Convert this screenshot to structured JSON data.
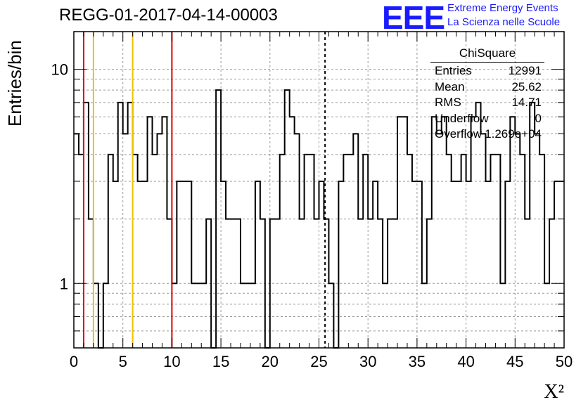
{
  "title": "REGG-01-2017-04-14-00003",
  "logo": {
    "mark": "EEE",
    "line1": "Extreme Energy Events",
    "line2": "La Scienza nelle Scuole",
    "color": "#1a1aff"
  },
  "stats": {
    "name": "ChiSquare",
    "rows": [
      {
        "label": "Entries",
        "value": "12991"
      },
      {
        "label": "Mean",
        "value": "25.62"
      },
      {
        "label": "RMS",
        "value": "14.71"
      },
      {
        "label": "Underflow",
        "value": "0"
      },
      {
        "label": "Overflow",
        "value": "1.269e+04"
      }
    ]
  },
  "chart_data": {
    "type": "histogram",
    "title": "REGG-01-2017-04-14-00003",
    "xlabel": "X²",
    "ylabel": "Entries/bin",
    "xlim": [
      0,
      50
    ],
    "ylim": [
      0.5,
      15
    ],
    "yscale": "log",
    "grid": true,
    "bin_width": 0.5,
    "xticks": [
      0,
      5,
      10,
      15,
      20,
      25,
      30,
      35,
      40,
      45,
      50
    ],
    "yticks": [
      1,
      10
    ],
    "bin_values": [
      5,
      4,
      7,
      2,
      1,
      0,
      1,
      4,
      3,
      7,
      5,
      7,
      4,
      3,
      3,
      6,
      4,
      5,
      6,
      2,
      1,
      3,
      3,
      3,
      1,
      1,
      1,
      2,
      0,
      8,
      3,
      2,
      2,
      2,
      1,
      1,
      1,
      3,
      2,
      0,
      2,
      2,
      4,
      8,
      6,
      5,
      2,
      4,
      4,
      2,
      3,
      2,
      1,
      0,
      3,
      4,
      4,
      5,
      2,
      4,
      2,
      3,
      2,
      1,
      2,
      2,
      6,
      6,
      4,
      3,
      3,
      1,
      2,
      6,
      5,
      6,
      4,
      3,
      3,
      4,
      3,
      6,
      7,
      5,
      3,
      4,
      4,
      1,
      3,
      6,
      5,
      4,
      2,
      7,
      5,
      4,
      1,
      2,
      3,
      3
    ],
    "vlines": [
      {
        "x": 1,
        "color": "#dd0000",
        "style": "solid"
      },
      {
        "x": 2,
        "color": "#f0c000",
        "style": "solid"
      },
      {
        "x": 6,
        "color": "#f0c000",
        "style": "solid"
      },
      {
        "x": 10,
        "color": "#dd0000",
        "style": "solid"
      },
      {
        "x": 25.62,
        "color": "#000000",
        "style": "dashed"
      }
    ]
  }
}
